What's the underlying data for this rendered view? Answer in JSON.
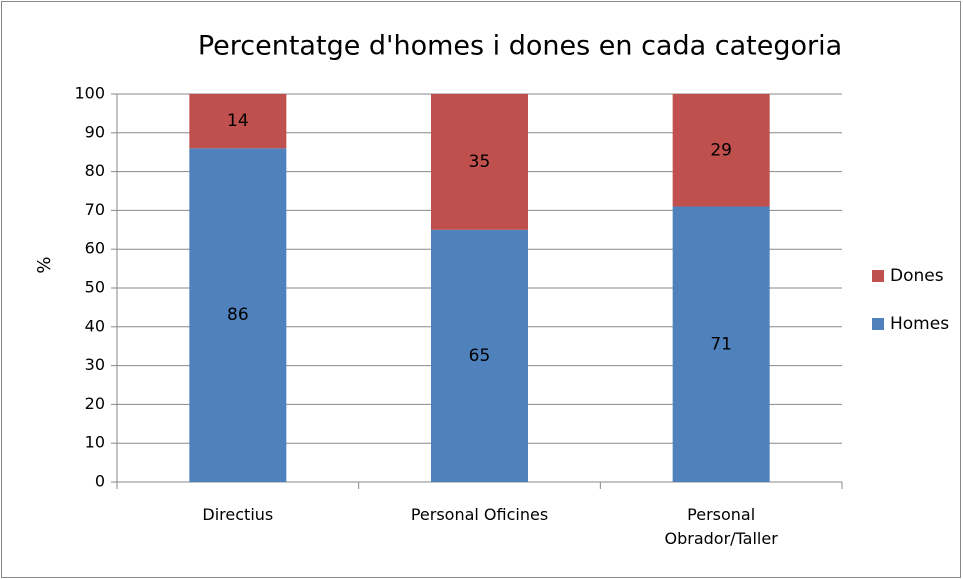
{
  "chart_data": {
    "type": "bar",
    "stacked": true,
    "title": "Percentatge d'homes i dones en cada categoria",
    "y_label": "%",
    "categories": [
      "Directius",
      "Personal Oficines",
      "Personal\nObrador/Taller"
    ],
    "series": [
      {
        "name": "Homes",
        "color": "#4f81bd",
        "values": [
          86,
          65,
          71
        ]
      },
      {
        "name": "Dones",
        "color": "#c0504d",
        "values": [
          14,
          35,
          29
        ]
      }
    ],
    "ylim": [
      0,
      100
    ],
    "yticks": [
      0,
      10,
      20,
      30,
      40,
      50,
      60,
      70,
      80,
      90,
      100
    ],
    "grid": true,
    "legend": "right"
  }
}
